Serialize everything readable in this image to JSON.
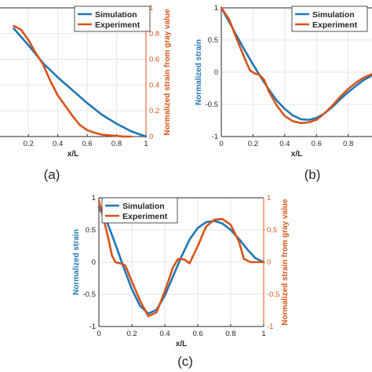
{
  "colors": {
    "simulation": "#1f77b4",
    "experiment": "#d95319",
    "axis": "#262626",
    "grid": "#e6e6e6"
  },
  "chart_data": [
    {
      "id": "a",
      "type": "line",
      "panel_label": "(a)",
      "xlabel": "x/L",
      "ylabel": "",
      "ylabel_right": "Normalized strain from gray value",
      "xlim": [
        0,
        1
      ],
      "ylim_right": [
        0,
        1
      ],
      "x_ticks": [
        "0.2",
        "0.4",
        "0.6",
        "0.8",
        "1"
      ],
      "y_ticks_right": [
        "0",
        "0.2",
        "0.4",
        "0.6",
        "0.8",
        "1"
      ],
      "grid": true,
      "legend": "top-right",
      "series": [
        {
          "name": "Simulation",
          "axis": "right",
          "color": "#1f77b4",
          "x": [
            0.1,
            0.2,
            0.3,
            0.4,
            0.5,
            0.6,
            0.7,
            0.8,
            0.9,
            1.0
          ],
          "y": [
            0.84,
            0.71,
            0.57,
            0.46,
            0.36,
            0.26,
            0.17,
            0.1,
            0.04,
            0.0
          ]
        },
        {
          "name": "Experiment",
          "axis": "right",
          "color": "#d95319",
          "x": [
            0.1,
            0.15,
            0.2,
            0.25,
            0.3,
            0.35,
            0.4,
            0.45,
            0.5,
            0.55,
            0.6,
            0.65,
            0.7,
            0.75,
            0.8,
            0.85,
            0.9
          ],
          "y": [
            0.86,
            0.83,
            0.75,
            0.65,
            0.56,
            0.43,
            0.32,
            0.24,
            0.16,
            0.09,
            0.05,
            0.03,
            0.015,
            0.01,
            0.005,
            0.0,
            0.0
          ]
        }
      ]
    },
    {
      "id": "b",
      "type": "line",
      "panel_label": "(b)",
      "xlabel": "x/L",
      "ylabel": "Normalized strain",
      "xlim": [
        0,
        1
      ],
      "ylim": [
        -1,
        1
      ],
      "x_ticks": [
        "0",
        "0.2",
        "0.4",
        "0.6",
        "0.8"
      ],
      "y_ticks": [
        "-1",
        "-0.5",
        "0",
        "0.5",
        "1"
      ],
      "grid": true,
      "legend": "top-right",
      "series": [
        {
          "name": "Simulation",
          "color": "#1f77b4",
          "x": [
            0,
            0.05,
            0.1,
            0.15,
            0.2,
            0.25,
            0.3,
            0.35,
            0.4,
            0.45,
            0.5,
            0.55,
            0.6,
            0.65,
            0.7,
            0.75,
            0.8,
            0.85,
            0.9,
            0.95
          ],
          "y": [
            1.0,
            0.78,
            0.55,
            0.33,
            0.12,
            -0.08,
            -0.27,
            -0.44,
            -0.57,
            -0.67,
            -0.73,
            -0.74,
            -0.71,
            -0.64,
            -0.54,
            -0.42,
            -0.31,
            -0.21,
            -0.12,
            -0.05
          ]
        },
        {
          "name": "Experiment",
          "color": "#d95319",
          "x": [
            0,
            0.05,
            0.1,
            0.15,
            0.18,
            0.21,
            0.24,
            0.27,
            0.3,
            0.35,
            0.4,
            0.45,
            0.5,
            0.55,
            0.6,
            0.65,
            0.7,
            0.75,
            0.8,
            0.85,
            0.9,
            0.95
          ],
          "y": [
            1.0,
            0.82,
            0.5,
            0.2,
            0.03,
            -0.02,
            -0.04,
            -0.12,
            -0.3,
            -0.52,
            -0.68,
            -0.76,
            -0.79,
            -0.78,
            -0.74,
            -0.64,
            -0.52,
            -0.38,
            -0.26,
            -0.16,
            -0.08,
            -0.03
          ]
        }
      ]
    },
    {
      "id": "c",
      "type": "line",
      "panel_label": "(c)",
      "xlabel": "x/L",
      "ylabel": "Normalized strain",
      "ylabel_right": "Normalized strain from gray value",
      "xlim": [
        0,
        1
      ],
      "ylim": [
        -1,
        1
      ],
      "ylim_right": [
        -1,
        1
      ],
      "x_ticks": [
        "0",
        "0.2",
        "0.4",
        "0.6",
        "0.8",
        "1"
      ],
      "y_ticks": [
        "-1",
        "-0.5",
        "0",
        "0.5",
        "1"
      ],
      "y_ticks_right": [
        "-1",
        "-0.5",
        "0",
        "0.5",
        "1"
      ],
      "grid": true,
      "legend": "top-left",
      "series": [
        {
          "name": "Simulation",
          "axis": "left",
          "color": "#1f77b4",
          "x": [
            0,
            0.05,
            0.1,
            0.15,
            0.2,
            0.25,
            0.3,
            0.35,
            0.4,
            0.45,
            0.5,
            0.55,
            0.6,
            0.65,
            0.7,
            0.75,
            0.8,
            0.85,
            0.9,
            0.95,
            1.0
          ],
          "y": [
            0.85,
            0.62,
            0.28,
            -0.08,
            -0.42,
            -0.68,
            -0.8,
            -0.74,
            -0.52,
            -0.22,
            0.08,
            0.35,
            0.53,
            0.62,
            0.64,
            0.6,
            0.5,
            0.36,
            0.2,
            0.06,
            0.0
          ]
        },
        {
          "name": "Experiment",
          "axis": "right",
          "color": "#d95319",
          "x": [
            0,
            0.05,
            0.08,
            0.1,
            0.13,
            0.16,
            0.2,
            0.25,
            0.3,
            0.35,
            0.4,
            0.45,
            0.48,
            0.52,
            0.55,
            0.6,
            0.65,
            0.7,
            0.75,
            0.8,
            0.85,
            0.88,
            0.92,
            0.95,
            1.0
          ],
          "y": [
            0.95,
            0.45,
            0.1,
            0.0,
            -0.02,
            -0.05,
            -0.3,
            -0.6,
            -0.84,
            -0.78,
            -0.45,
            -0.08,
            0.05,
            0.04,
            -0.02,
            0.25,
            0.55,
            0.66,
            0.67,
            0.58,
            0.32,
            0.05,
            0.0,
            0.0,
            0.0
          ]
        }
      ]
    }
  ]
}
